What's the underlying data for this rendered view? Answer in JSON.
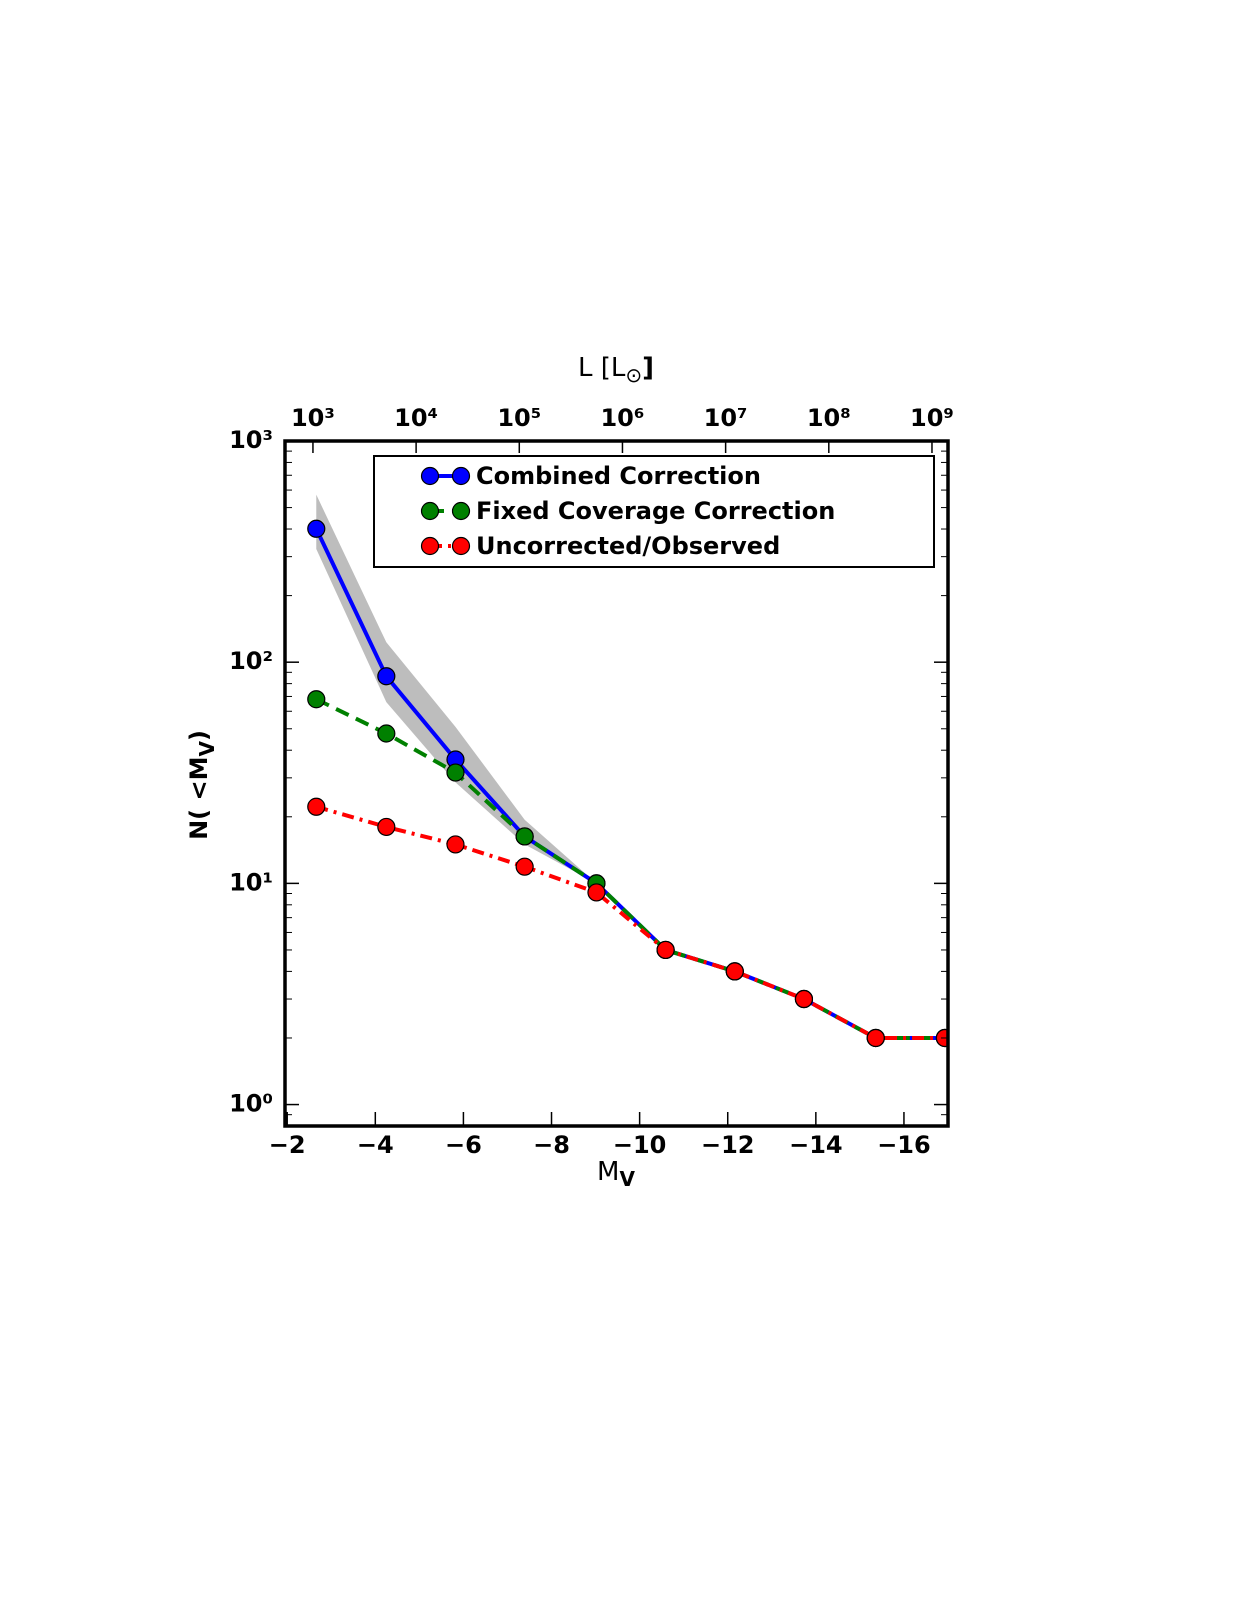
{
  "chart_data": {
    "type": "line",
    "x_label": "M",
    "x_label_sub": "V",
    "y_label": "N( <M",
    "y_label_sub": "V",
    "y_label_end": ")",
    "x2_label": "L [L",
    "x2_label_sub": "⊙",
    "x2_label_end": "]",
    "x": [
      -2.66,
      -4.25,
      -5.82,
      -7.39,
      -9.02,
      -10.59,
      -12.16,
      -13.73,
      -15.36,
      -16.93
    ],
    "series": [
      {
        "name": "Combined Correction",
        "color": "#0000ff",
        "linestyle": "solid",
        "values": [
          401,
          86.4,
          36.3,
          16.3,
          10,
          5,
          4,
          3,
          2,
          2
        ],
        "band_lower": [
          325,
          66,
          28.6,
          15,
          10,
          5,
          4,
          3,
          2,
          2
        ],
        "band_upper": [
          572,
          123,
          51,
          19.4,
          10,
          5,
          4,
          3,
          2,
          2
        ],
        "band_color": "#bdbdbd"
      },
      {
        "name": "Fixed Coverage Correction",
        "color": "#008000",
        "linestyle": "dashed",
        "values": [
          68,
          47.6,
          31.7,
          16.3,
          10,
          5,
          4,
          3,
          2,
          2
        ]
      },
      {
        "name": "Uncorrected/Observed",
        "color": "#ff0000",
        "linestyle": "dashdot",
        "values": [
          22.2,
          18,
          15,
          11.9,
          9.1,
          5,
          4,
          3,
          2,
          2
        ]
      }
    ],
    "xlim": [
      -1.95,
      -17.0
    ],
    "xticks": [
      {
        "value": -2,
        "label": "−2"
      },
      {
        "value": -4,
        "label": "−4"
      },
      {
        "value": -6,
        "label": "−6"
      },
      {
        "value": -8,
        "label": "−8"
      },
      {
        "value": -10,
        "label": "−10"
      },
      {
        "value": -12,
        "label": "−12"
      },
      {
        "value": -14,
        "label": "−14"
      },
      {
        "value": -16,
        "label": "−16"
      }
    ],
    "ylim": [
      0.8,
      1000
    ],
    "yscale": "log",
    "yticks": [
      {
        "value": 1,
        "label": "10⁰"
      },
      {
        "value": 10,
        "label": "10¹"
      },
      {
        "value": 100,
        "label": "10²"
      },
      {
        "value": 1000,
        "label": "10³"
      }
    ],
    "yminorticks": [
      0.8,
      0.9,
      2,
      3,
      4,
      5,
      6,
      7,
      8,
      9,
      20,
      30,
      40,
      50,
      60,
      70,
      80,
      90,
      200,
      300,
      400,
      500,
      600,
      700,
      800,
      900
    ],
    "x2lim": [
      536,
      1430000000
    ],
    "x2scale": "log",
    "x2ticks": [
      {
        "value": 1000,
        "label": "10³"
      },
      {
        "value": 10000,
        "label": "10⁴"
      },
      {
        "value": 100000,
        "label": "10⁵"
      },
      {
        "value": 1000000,
        "label": "10⁶"
      },
      {
        "value": 10000000,
        "label": "10⁷"
      },
      {
        "value": 100000000,
        "label": "10⁸"
      },
      {
        "value": 1000000000,
        "label": "10⁹"
      }
    ],
    "legend": "upper right",
    "marker": "circle"
  }
}
